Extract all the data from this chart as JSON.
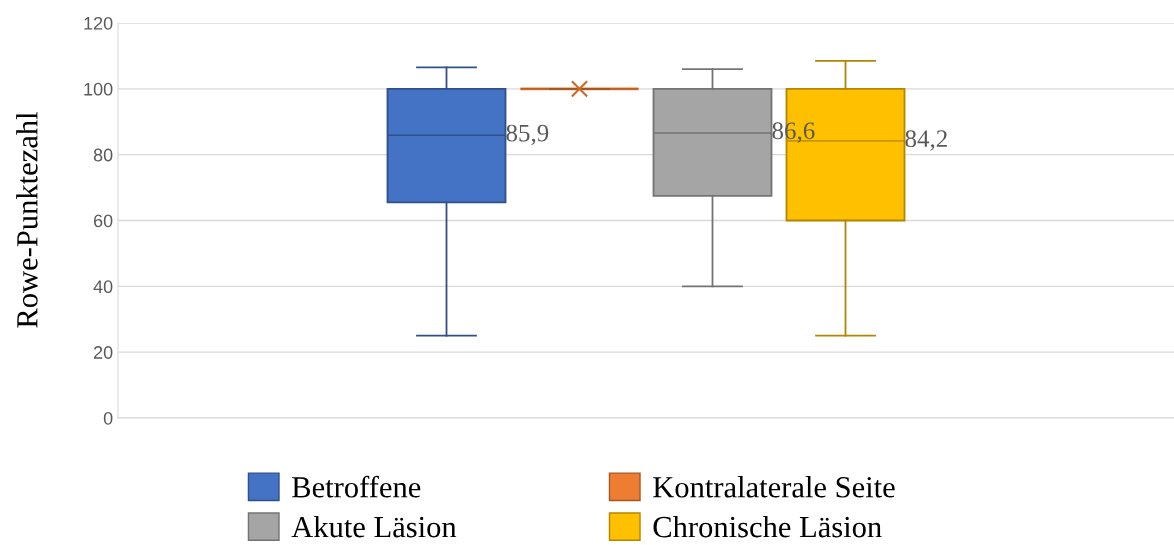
{
  "chart_data": {
    "type": "box",
    "ylabel": "Rowe-Punktezahl",
    "categories": [
      null
    ],
    "ylim": [
      0,
      120
    ],
    "yticks": [
      0,
      20,
      40,
      60,
      80,
      100,
      120
    ],
    "grid": "y",
    "legend": "bottom",
    "series": [
      {
        "name": "Betroffene",
        "color": "#4472c4",
        "boxes": [
          {
            "low": 25,
            "q1": 65.5,
            "median": 85.9,
            "q3": 100,
            "high": 106.5
          }
        ]
      },
      {
        "name": "Kontralaterale Seite",
        "color": "#ed7d31",
        "boxes": [
          {
            "low": 100,
            "q1": 100,
            "median": 100,
            "q3": 100,
            "high": 100,
            "mean": 100
          }
        ]
      },
      {
        "name": "Akute Läsion",
        "color": "#a5a5a5",
        "boxes": [
          {
            "low": 40,
            "q1": 67.5,
            "median": 86.6,
            "q3": 100,
            "high": 106
          }
        ]
      },
      {
        "name": "Chronische Läsion",
        "color": "#ffc000",
        "boxes": [
          {
            "low": 25,
            "q1": 60,
            "median": 84.2,
            "q3": 100,
            "high": 108.5
          }
        ]
      }
    ],
    "annotations": [
      "85,9",
      "86,6",
      "84,2"
    ]
  }
}
